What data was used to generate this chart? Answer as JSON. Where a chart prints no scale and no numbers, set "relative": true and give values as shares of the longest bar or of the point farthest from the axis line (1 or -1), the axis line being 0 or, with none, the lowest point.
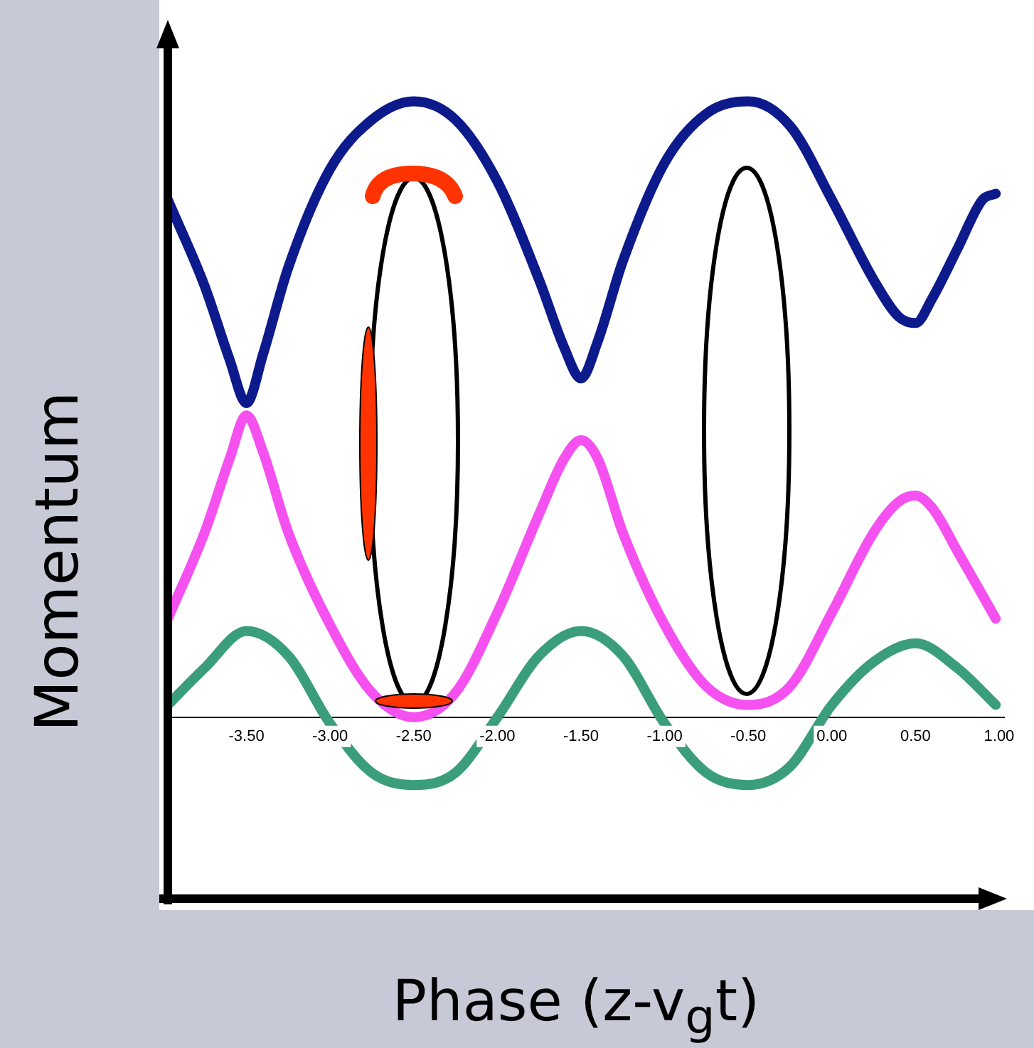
{
  "chart_data": {
    "type": "line",
    "xlabel": "Phase (z-v$_{g}$t)",
    "ylabel": "Momentum",
    "relative": true,
    "xlim": [
      -3.97,
      1.03
    ],
    "xticks": [
      {
        "value": -3.5,
        "label": "-3.50"
      },
      {
        "value": -3,
        "label": "-3.00"
      },
      {
        "value": -2.5,
        "label": "-2.50"
      },
      {
        "value": -2,
        "label": "-2.00"
      },
      {
        "value": -1.5,
        "label": "-1.50"
      },
      {
        "value": -1,
        "label": "-1.00"
      },
      {
        "value": -0.5,
        "label": "-0.50"
      },
      {
        "value": 0,
        "label": "0.00"
      },
      {
        "value": 0.5,
        "label": "0.50"
      },
      {
        "value": 1,
        "label": "1.00"
      }
    ],
    "series": [
      {
        "color": "#0d1a8c",
        "x": [
          -3.97,
          -3.75,
          -3.6,
          -3.5,
          -3.4,
          -3.25,
          -3.0,
          -2.75,
          -2.5,
          -2.25,
          -2.0,
          -1.75,
          -1.6,
          -1.5,
          -1.4,
          -1.25,
          -1.0,
          -0.75,
          -0.5,
          -0.25,
          0,
          0.25,
          0.4,
          0.5,
          0.6,
          0.75,
          0.9,
          0.98
        ],
        "values": [
          0.84,
          0.7,
          0.58,
          0.51,
          0.59,
          0.73,
          0.89,
          0.97,
          1.0,
          0.97,
          0.87,
          0.71,
          0.6,
          0.55,
          0.61,
          0.74,
          0.9,
          0.98,
          1.0,
          0.96,
          0.84,
          0.71,
          0.65,
          0.64,
          0.68,
          0.76,
          0.84,
          0.85
        ]
      },
      {
        "color": "#f550f0",
        "x": [
          -3.97,
          -3.75,
          -3.6,
          -3.5,
          -3.4,
          -3.25,
          -3.0,
          -2.75,
          -2.5,
          -2.25,
          -2.0,
          -1.75,
          -1.6,
          -1.5,
          -1.4,
          -1.25,
          -1.0,
          -0.75,
          -0.5,
          -0.25,
          0,
          0.25,
          0.4,
          0.5,
          0.6,
          0.75,
          0.98
        ],
        "values": [
          0.16,
          0.3,
          0.42,
          0.49,
          0.43,
          0.3,
          0.15,
          0.04,
          0,
          0.04,
          0.17,
          0.33,
          0.42,
          0.45,
          0.42,
          0.3,
          0.15,
          0.05,
          0.02,
          0.05,
          0.17,
          0.3,
          0.35,
          0.36,
          0.34,
          0.27,
          0.16
        ]
      },
      {
        "color": "#3b9e7a",
        "x": [
          -3.97,
          -3.75,
          -3.5,
          -3.25,
          -3.0,
          -2.75,
          -2.5,
          -2.25,
          -2.0,
          -1.75,
          -1.5,
          -1.25,
          -1.0,
          -0.75,
          -0.5,
          -0.25,
          0,
          0.25,
          0.5,
          0.75,
          0.98
        ],
        "values": [
          0.02,
          0.08,
          0.14,
          0.1,
          -0.01,
          -0.09,
          -0.11,
          -0.09,
          0,
          0.1,
          0.14,
          0.1,
          -0.01,
          -0.09,
          -0.11,
          -0.08,
          0.02,
          0.09,
          0.12,
          0.08,
          0.02
        ]
      }
    ]
  }
}
